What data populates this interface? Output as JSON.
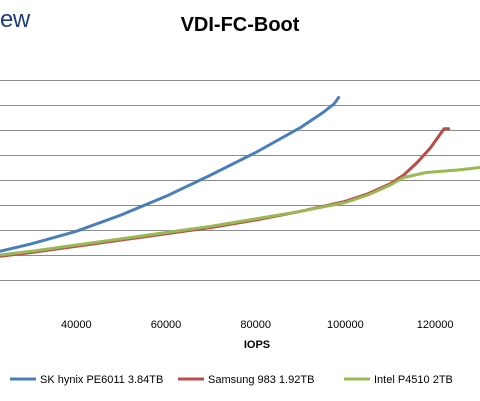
{
  "logo_text": "ew",
  "chart_data": {
    "type": "line",
    "title": "VDI-FC-Boot",
    "xlabel": "IOPS",
    "ylabel": "",
    "xlim": [
      23000,
      130000
    ],
    "x_ticks": [
      "40000",
      "60000",
      "80000",
      "100000",
      "120000"
    ],
    "x_tick_values": [
      40000,
      60000,
      80000,
      100000,
      120000
    ],
    "ylim": [
      0,
      10
    ],
    "y_grid_values": [
      1,
      2,
      3,
      4,
      5,
      6,
      7,
      8,
      9
    ],
    "grid": "horizontal",
    "legend_position": "bottom",
    "series": [
      {
        "name": "SK hynix PE6011 3.84TB",
        "color": "#4a7ebb",
        "points": [
          [
            23000,
            2.15
          ],
          [
            30000,
            2.45
          ],
          [
            40000,
            2.95
          ],
          [
            50000,
            3.6
          ],
          [
            60000,
            4.35
          ],
          [
            70000,
            5.2
          ],
          [
            80000,
            6.1
          ],
          [
            90000,
            7.1
          ],
          [
            95000,
            7.7
          ],
          [
            97500,
            8.05
          ],
          [
            98500,
            8.3
          ]
        ]
      },
      {
        "name": "Samsung 983 1.92TB",
        "color": "#be4b48",
        "points": [
          [
            23000,
            1.95
          ],
          [
            30000,
            2.1
          ],
          [
            40000,
            2.35
          ],
          [
            50000,
            2.6
          ],
          [
            60000,
            2.85
          ],
          [
            70000,
            3.1
          ],
          [
            80000,
            3.4
          ],
          [
            90000,
            3.75
          ],
          [
            100000,
            4.15
          ],
          [
            105000,
            4.45
          ],
          [
            110000,
            4.85
          ],
          [
            113000,
            5.2
          ],
          [
            116000,
            5.7
          ],
          [
            119000,
            6.3
          ],
          [
            121000,
            6.8
          ],
          [
            122000,
            7.05
          ],
          [
            123000,
            7.05
          ]
        ]
      },
      {
        "name": "Intel P4510 2TB",
        "color": "#98b954",
        "points": [
          [
            23000,
            2.0
          ],
          [
            30000,
            2.15
          ],
          [
            40000,
            2.4
          ],
          [
            50000,
            2.65
          ],
          [
            60000,
            2.9
          ],
          [
            70000,
            3.15
          ],
          [
            80000,
            3.45
          ],
          [
            90000,
            3.75
          ],
          [
            100000,
            4.1
          ],
          [
            105000,
            4.4
          ],
          [
            110000,
            4.8
          ],
          [
            113000,
            5.1
          ],
          [
            118000,
            5.3
          ],
          [
            125000,
            5.4
          ],
          [
            130000,
            5.5
          ]
        ]
      }
    ]
  }
}
